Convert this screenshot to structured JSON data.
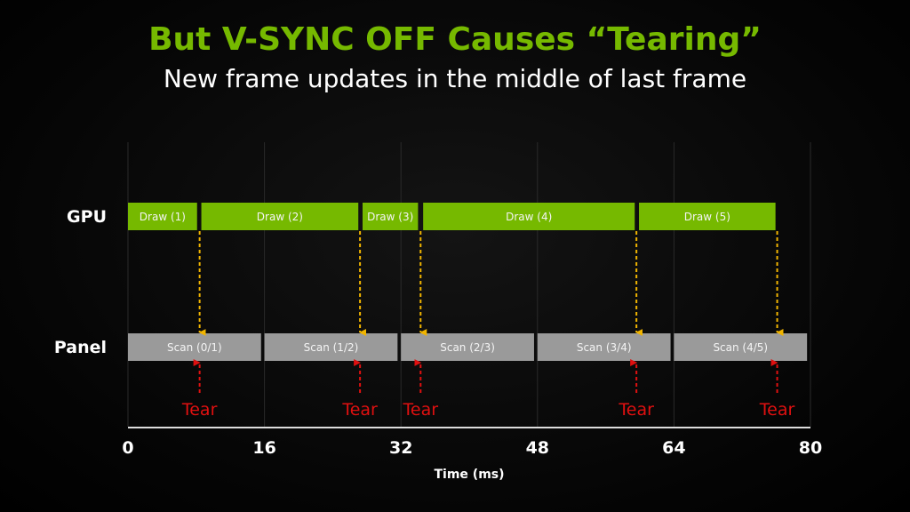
{
  "title": "But V-SYNC OFF Causes “Tearing”",
  "subtitle": "New frame updates in the middle of last frame",
  "colors": {
    "title": "#76b900",
    "draw": "#76b900",
    "scan": "#9a9a9a",
    "present_arrow": "#f0b400",
    "tear": "#e01010",
    "grid": "#2a2a2a",
    "axis": "#dddddd"
  },
  "chart_data": {
    "type": "timeline",
    "xlabel": "Time (ms)",
    "xlim": [
      0,
      80
    ],
    "xticks": [
      0,
      16,
      32,
      48,
      64,
      80
    ],
    "rows": [
      {
        "label": "GPU",
        "bars": [
          {
            "label": "Draw (1)",
            "start": 0,
            "end": 8.1
          },
          {
            "label": "Draw (2)",
            "start": 8.6,
            "end": 27.0
          },
          {
            "label": "Draw (3)",
            "start": 27.5,
            "end": 34.0
          },
          {
            "label": "Draw (4)",
            "start": 34.6,
            "end": 59.4
          },
          {
            "label": "Draw (5)",
            "start": 59.9,
            "end": 75.9
          }
        ]
      },
      {
        "label": "Panel",
        "bars": [
          {
            "label": "Scan (0/1)",
            "start": 0,
            "end": 15.6
          },
          {
            "label": "Scan (1/2)",
            "start": 16,
            "end": 31.6
          },
          {
            "label": "Scan (2/3)",
            "start": 32,
            "end": 47.6
          },
          {
            "label": "Scan (3/4)",
            "start": 48,
            "end": 63.6
          },
          {
            "label": "Scan (4/5)",
            "start": 64,
            "end": 79.6
          }
        ]
      }
    ],
    "tears": [
      {
        "label": "Tear",
        "time": 8.4
      },
      {
        "label": "Tear",
        "time": 27.2
      },
      {
        "label": "Tear",
        "time": 34.3
      },
      {
        "label": "Tear",
        "time": 59.6
      },
      {
        "label": "Tear",
        "time": 76.1
      }
    ]
  }
}
